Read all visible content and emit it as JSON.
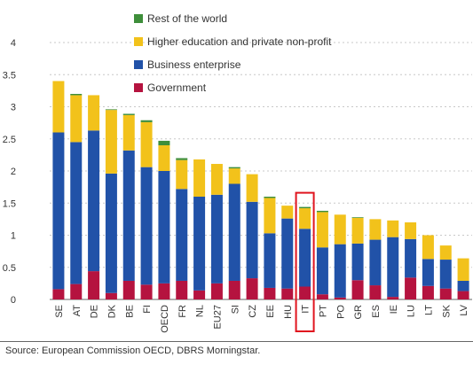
{
  "chart_data": {
    "type": "bar",
    "stacked": true,
    "categories": [
      "SE",
      "AT",
      "DE",
      "DK",
      "BE",
      "FI",
      "OECD",
      "FR",
      "NL",
      "EU27",
      "SI",
      "CZ",
      "EE",
      "HU",
      "IT",
      "PT",
      "PO",
      "GR",
      "ES",
      "IE",
      "LU",
      "LT",
      "SK",
      "LV"
    ],
    "series": [
      {
        "name": "Government",
        "color": "#b5133f",
        "values": [
          0.16,
          0.24,
          0.44,
          0.1,
          0.29,
          0.23,
          0.25,
          0.29,
          0.14,
          0.25,
          0.29,
          0.33,
          0.18,
          0.17,
          0.2,
          0.08,
          0.03,
          0.3,
          0.22,
          0.04,
          0.34,
          0.21,
          0.17,
          0.13
        ]
      },
      {
        "name": "Business enterprise",
        "color": "#2152a8",
        "values": [
          2.44,
          2.21,
          2.19,
          1.86,
          2.03,
          1.83,
          1.75,
          1.43,
          1.46,
          1.38,
          1.51,
          1.19,
          0.85,
          1.09,
          0.9,
          0.73,
          0.83,
          0.57,
          0.71,
          0.93,
          0.6,
          0.42,
          0.45,
          0.16
        ]
      },
      {
        "name": "Higher education and private non-profit",
        "color": "#f2c21b",
        "values": [
          0.8,
          0.73,
          0.55,
          0.99,
          0.55,
          0.7,
          0.4,
          0.45,
          0.58,
          0.48,
          0.24,
          0.43,
          0.55,
          0.2,
          0.32,
          0.55,
          0.46,
          0.4,
          0.32,
          0.26,
          0.26,
          0.37,
          0.22,
          0.35
        ]
      },
      {
        "name": "Rest of the world",
        "color": "#3e8e3a",
        "values": [
          0,
          0.02,
          0,
          0.01,
          0.02,
          0.03,
          0.07,
          0.03,
          0,
          0,
          0.02,
          0,
          0.02,
          0,
          0.02,
          0.02,
          0,
          0.01,
          0,
          0,
          0,
          0,
          0,
          0
        ]
      }
    ],
    "ylim": [
      0,
      4
    ],
    "yticks": [
      "0",
      "0.5",
      "1",
      "1.5",
      "2",
      "2.5",
      "3",
      "3.5",
      "4"
    ],
    "grid": "horizontal dashed",
    "legend_position": "top",
    "legend_order": [
      "Rest of the world",
      "Higher education and private non-profit",
      "Business enterprise",
      "Government"
    ],
    "highlight_category": "IT",
    "highlight_color": "#e0141e"
  },
  "source": "Source: European Commission OECD, DBRS Morningstar."
}
